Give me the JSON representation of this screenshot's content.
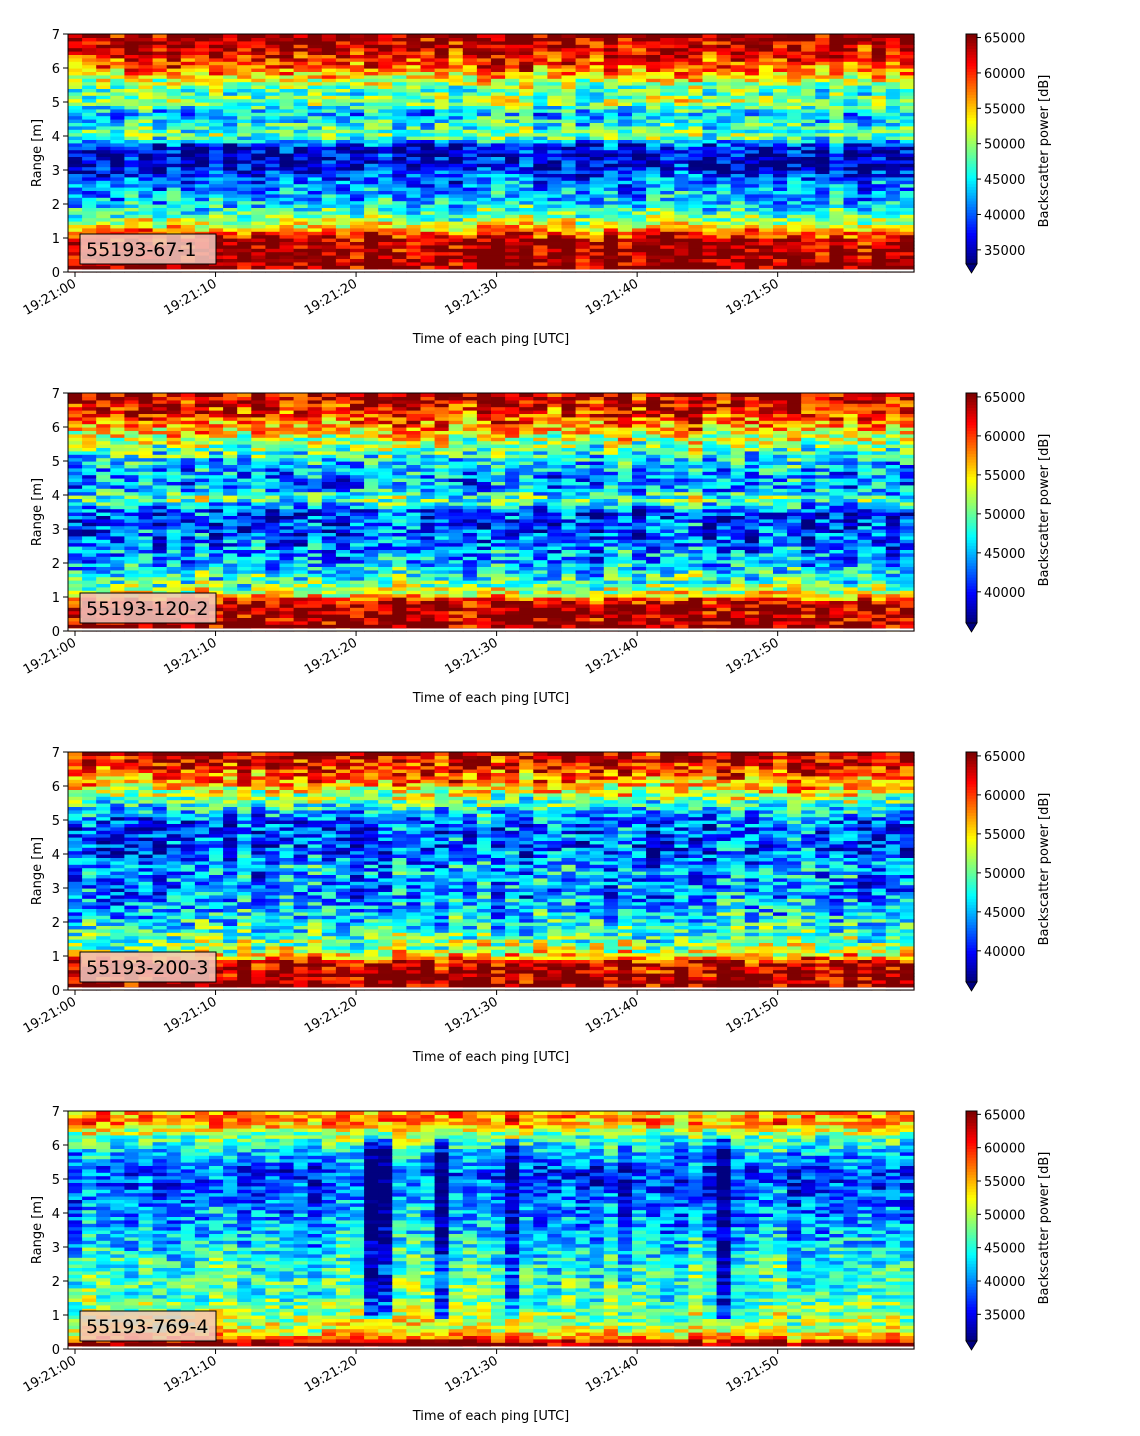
{
  "figure": {
    "colormap": "jet",
    "colormap_stops": [
      "#00007f",
      "#0000ff",
      "#007fff",
      "#00ffff",
      "#7fff7f",
      "#ffff00",
      "#ff7f00",
      "#ff0000",
      "#7f0000"
    ],
    "label_box_color": "#f2c9bf"
  },
  "chart_data": [
    {
      "type": "heatmap",
      "label": "55193-67-1",
      "xlabel": "Time of each ping [UTC]",
      "ylabel": "Range [m]",
      "colorbar_label": "Backscatter power [dB]",
      "xlim": [
        "19:21:00",
        "19:21:59"
      ],
      "xticks": [
        "19:21:00",
        "19:21:10",
        "19:21:20",
        "19:21:30",
        "19:21:40",
        "19:21:50"
      ],
      "ylim": [
        0,
        7
      ],
      "yticks": [
        "0",
        "1",
        "2",
        "3",
        "4",
        "5",
        "6",
        "7"
      ],
      "clim": [
        33000,
        65500
      ],
      "cticks": [
        "35000",
        "40000",
        "45000",
        "50000",
        "55000",
        "60000",
        "65000"
      ],
      "colorbar_extend": "min",
      "rows": 70,
      "cols": 60,
      "seed": 11,
      "profile": [
        [
          0.0,
          0.98
        ],
        [
          0.2,
          1.0
        ],
        [
          0.9,
          0.96
        ],
        [
          1.2,
          0.78
        ],
        [
          1.5,
          0.55
        ],
        [
          2.0,
          0.35
        ],
        [
          2.6,
          0.25
        ],
        [
          3.2,
          0.08
        ],
        [
          3.7,
          0.12
        ],
        [
          4.0,
          0.5
        ],
        [
          4.3,
          0.42
        ],
        [
          4.7,
          0.3
        ],
        [
          5.0,
          0.55
        ],
        [
          5.3,
          0.45
        ],
        [
          5.6,
          0.58
        ],
        [
          6.0,
          0.78
        ],
        [
          6.5,
          0.92
        ],
        [
          7.0,
          0.98
        ]
      ],
      "noise": 0.17,
      "dark_columns": []
    },
    {
      "type": "heatmap",
      "label": "55193-120-2",
      "xlabel": "Time of each ping [UTC]",
      "ylabel": "Range [m]",
      "colorbar_label": "Backscatter power [dB]",
      "xlim": [
        "19:21:00",
        "19:21:59"
      ],
      "xticks": [
        "19:21:00",
        "19:21:10",
        "19:21:20",
        "19:21:30",
        "19:21:40",
        "19:21:50"
      ],
      "ylim": [
        0,
        7
      ],
      "yticks": [
        "0",
        "1",
        "2",
        "3",
        "4",
        "5",
        "6",
        "7"
      ],
      "clim": [
        36000,
        65500
      ],
      "cticks": [
        "40000",
        "45000",
        "50000",
        "55000",
        "60000",
        "65000"
      ],
      "colorbar_extend": "min",
      "rows": 70,
      "cols": 60,
      "seed": 23,
      "profile": [
        [
          0.0,
          0.98
        ],
        [
          0.1,
          1.0
        ],
        [
          0.85,
          0.96
        ],
        [
          1.1,
          0.6
        ],
        [
          1.5,
          0.45
        ],
        [
          2.0,
          0.3
        ],
        [
          2.8,
          0.22
        ],
        [
          3.5,
          0.18
        ],
        [
          3.9,
          0.5
        ],
        [
          4.2,
          0.28
        ],
        [
          4.8,
          0.3
        ],
        [
          5.3,
          0.45
        ],
        [
          5.7,
          0.6
        ],
        [
          6.2,
          0.8
        ],
        [
          6.7,
          0.92
        ],
        [
          7.0,
          0.97
        ]
      ],
      "noise": 0.2,
      "dark_columns": []
    },
    {
      "type": "heatmap",
      "label": "55193-200-3",
      "xlabel": "Time of each ping [UTC]",
      "ylabel": "Range [m]",
      "colorbar_label": "Backscatter power [dB]",
      "xlim": [
        "19:21:00",
        "19:21:59"
      ],
      "xticks": [
        "19:21:00",
        "19:21:10",
        "19:21:20",
        "19:21:30",
        "19:21:40",
        "19:21:50"
      ],
      "ylim": [
        0,
        7
      ],
      "yticks": [
        "0",
        "1",
        "2",
        "3",
        "4",
        "5",
        "6",
        "7"
      ],
      "clim": [
        36000,
        65500
      ],
      "cticks": [
        "40000",
        "45000",
        "50000",
        "55000",
        "60000",
        "65000"
      ],
      "colorbar_extend": "min",
      "rows": 70,
      "cols": 60,
      "seed": 37,
      "profile": [
        [
          0.0,
          0.98
        ],
        [
          0.1,
          1.0
        ],
        [
          0.8,
          0.96
        ],
        [
          1.1,
          0.58
        ],
        [
          1.6,
          0.45
        ],
        [
          2.2,
          0.35
        ],
        [
          3.0,
          0.25
        ],
        [
          3.6,
          0.3
        ],
        [
          4.2,
          0.2
        ],
        [
          5.0,
          0.22
        ],
        [
          5.5,
          0.45
        ],
        [
          6.0,
          0.68
        ],
        [
          6.5,
          0.85
        ],
        [
          7.0,
          0.97
        ]
      ],
      "noise": 0.2,
      "dark_columns": []
    },
    {
      "type": "heatmap",
      "label": "55193-769-4",
      "xlabel": "Time of each ping [UTC]",
      "ylabel": "Range [m]",
      "colorbar_label": "Backscatter power [dB]",
      "xlim": [
        "19:21:00",
        "19:21:59"
      ],
      "xticks": [
        "19:21:00",
        "19:21:10",
        "19:21:20",
        "19:21:30",
        "19:21:40",
        "19:21:50"
      ],
      "ylim": [
        0,
        7
      ],
      "yticks": [
        "0",
        "1",
        "2",
        "3",
        "4",
        "5",
        "6",
        "7"
      ],
      "clim": [
        31000,
        65500
      ],
      "cticks": [
        "35000",
        "40000",
        "45000",
        "50000",
        "55000",
        "60000",
        "65000"
      ],
      "colorbar_extend": "min",
      "rows": 70,
      "cols": 60,
      "seed": 51,
      "profile": [
        [
          0.0,
          0.95
        ],
        [
          0.15,
          1.0
        ],
        [
          0.35,
          0.75
        ],
        [
          0.6,
          0.58
        ],
        [
          1.0,
          0.52
        ],
        [
          1.5,
          0.45
        ],
        [
          2.5,
          0.4
        ],
        [
          3.5,
          0.3
        ],
        [
          4.5,
          0.22
        ],
        [
          5.2,
          0.18
        ],
        [
          5.8,
          0.32
        ],
        [
          6.3,
          0.5
        ],
        [
          6.7,
          0.75
        ],
        [
          7.0,
          0.7
        ]
      ],
      "noise": 0.16,
      "dark_columns": [
        21,
        22,
        26,
        31,
        46
      ]
    }
  ]
}
